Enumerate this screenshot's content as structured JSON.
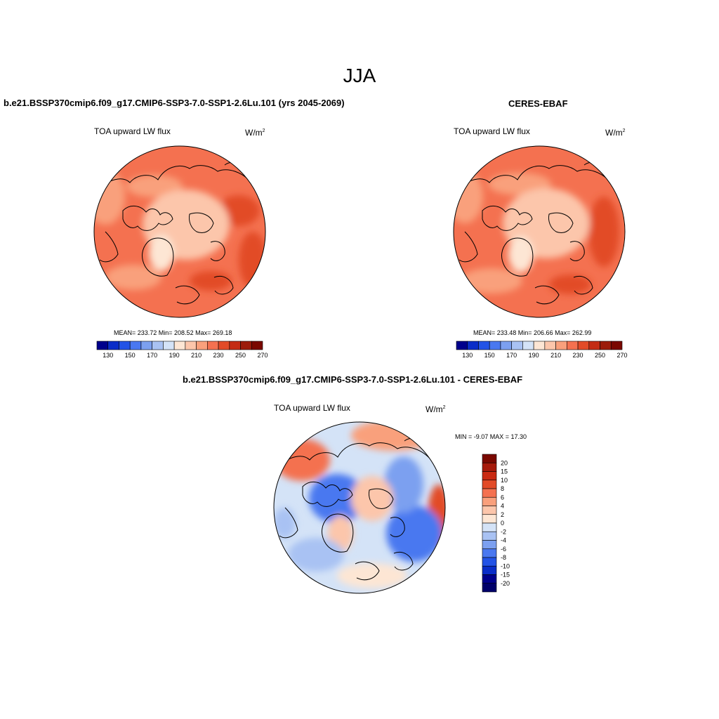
{
  "title": "JJA",
  "panels": [
    {
      "title": "b.e21.BSSP370cmip6.f09_g17.CMIP6-SSP3-7.0-SSP1-2.6Lu.101 (yrs 2045-2069)",
      "variable": "TOA upward LW flux",
      "units": "W/m",
      "units_exp": "2",
      "stats": "MEAN= 233.72  Min= 208.52  Max= 269.18"
    },
    {
      "title": "CERES-EBAF",
      "variable": "TOA upward LW flux",
      "units": "W/m",
      "units_exp": "2",
      "stats": "MEAN= 233.48  Min= 206.66  Max= 262.99"
    },
    {
      "title": "b.e21.BSSP370cmip6.f09_g17.CMIP6-SSP3-7.0-SSP1-2.6Lu.101 - CERES-EBAF",
      "variable": "TOA upward LW flux",
      "units": "W/m",
      "units_exp": "2",
      "stats": "MIN =  -9.07 MAX =  17.30"
    }
  ],
  "abs_colorbar": {
    "labels": [
      "130",
      "150",
      "170",
      "190",
      "210",
      "230",
      "250",
      "270"
    ],
    "colors": [
      "#00008c",
      "#0a2dc8",
      "#2353e6",
      "#4a78f0",
      "#7ca0f0",
      "#a9c2f3",
      "#d4e3f7",
      "#fde6d4",
      "#fcc6ab",
      "#f9a07c",
      "#f47150",
      "#e24b28",
      "#c42c14",
      "#9c1c0b",
      "#7a0800"
    ]
  },
  "diff_colorbar": {
    "labels": [
      "20",
      "15",
      "10",
      "8",
      "6",
      "4",
      "2",
      "0",
      "-2",
      "-4",
      "-6",
      "-8",
      "-10",
      "-15",
      "-20"
    ],
    "colors": [
      "#7a0800",
      "#a61a0b",
      "#c92a12",
      "#e24b28",
      "#f47150",
      "#f9a07c",
      "#fcc6ab",
      "#fde6d4",
      "#d4e3f7",
      "#a9c2f3",
      "#7ca0f0",
      "#4a78f0",
      "#2353e6",
      "#0a2dc8",
      "#00008c",
      "#00006a"
    ]
  }
}
